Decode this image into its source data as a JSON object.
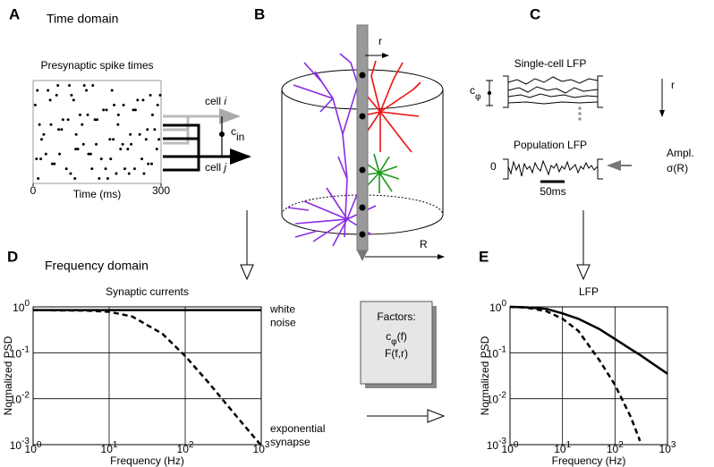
{
  "panel_labels": [
    "A",
    "B",
    "C",
    "D",
    "E"
  ],
  "time_domain": "Time domain",
  "frequency_domain": "Frequency domain",
  "panel_a": {
    "cell_i": {
      "text": "cell",
      "index": "i"
    },
    "cell_j": {
      "text": "cell",
      "index": "j"
    },
    "c_in": {
      "symbol": "c",
      "subscript": "in"
    }
  },
  "panel_b": {
    "r": "r",
    "R": "R"
  },
  "panel_c": {
    "single_cell": "Single-cell LFP",
    "population": "Population LFP",
    "c_phi": {
      "symbol": "c",
      "subscript": "φ"
    },
    "r": "r",
    "zero": "0",
    "ampl": "Ampl.",
    "sigma": "σ(R)",
    "scale_bar": "50ms"
  },
  "factors": {
    "title": "Factors:",
    "c_phi": {
      "symbol": "c",
      "subscript": "φ",
      "arg": "(f)"
    },
    "F": "F(f,r)"
  },
  "chart_data": [
    {
      "type": "scatter",
      "title": "Presynaptic spike times",
      "xlabel": "Time (ms)",
      "xlim": [
        0,
        300
      ],
      "xticks": [
        0,
        300
      ],
      "ylim": [
        -1,
        20
      ],
      "color": "#000000",
      "x": [
        12,
        45,
        88,
        130,
        170,
        210,
        255,
        290,
        20,
        67,
        101,
        150,
        199,
        240,
        280,
        5,
        55,
        95,
        140,
        185,
        225,
        270,
        30,
        78,
        118,
        160,
        205,
        250,
        295,
        15,
        60,
        110,
        145,
        190,
        235,
        275,
        40,
        85,
        125,
        175,
        215,
        260,
        8,
        50,
        100,
        135,
        180,
        230,
        285,
        25,
        70,
        115,
        165,
        200,
        245,
        292,
        35,
        90,
        120,
        155,
        195,
        238,
        278,
        18,
        62,
        105,
        148,
        188,
        228,
        268,
        42,
        82,
        128,
        172,
        212,
        258,
        298,
        10,
        58,
        98,
        138,
        182,
        222,
        265
      ],
      "values": [
        0,
        3,
        1,
        5,
        2,
        7,
        4,
        6,
        8,
        10,
        9,
        12,
        11,
        14,
        13,
        15,
        17,
        16,
        19,
        18,
        1,
        3,
        5,
        2,
        7,
        4,
        6,
        9,
        8,
        11,
        10,
        13,
        12,
        15,
        14,
        17,
        16,
        19,
        18,
        0,
        2,
        1,
        4,
        3,
        6,
        5,
        8,
        7,
        10,
        9,
        12,
        11,
        14,
        13,
        16,
        15,
        18,
        17,
        19,
        0,
        1,
        2,
        3,
        4,
        5,
        6,
        7,
        8,
        9,
        10,
        11,
        12,
        13,
        14,
        15,
        16,
        17,
        18,
        19,
        0,
        2,
        4,
        6,
        8
      ]
    },
    {
      "type": "line",
      "title": "Synaptic currents",
      "xlabel": "Frequency (Hz)",
      "ylabel": "Normalized PSD",
      "xscale": "log",
      "yscale": "log",
      "grid": true,
      "xlim": [
        1,
        1000
      ],
      "ylim": [
        0.001,
        1
      ],
      "xticks": [
        {
          "value": 1,
          "label": "10^0"
        },
        {
          "value": 10,
          "label": "10^1"
        },
        {
          "value": 100,
          "label": "10^2"
        },
        {
          "value": 1000,
          "label": "10^3"
        }
      ],
      "yticks": [
        {
          "value": 0.001,
          "label": "10^-3"
        },
        {
          "value": 0.01,
          "label": "10^-2"
        },
        {
          "value": 0.1,
          "label": "10^-1"
        },
        {
          "value": 1,
          "label": "10^0"
        }
      ],
      "x": [
        1,
        2,
        5,
        10,
        20,
        50,
        100,
        200,
        500,
        1000
      ],
      "series": [
        {
          "name": "white noise",
          "color": "#000000",
          "linestyle": "solid",
          "values": [
            0.85,
            0.85,
            0.85,
            0.85,
            0.85,
            0.85,
            0.85,
            0.85,
            0.85,
            0.85
          ]
        },
        {
          "name": "exponential synapse",
          "color": "#000000",
          "linestyle": "dashed",
          "values": [
            0.85,
            0.84,
            0.83,
            0.78,
            0.62,
            0.26,
            0.085,
            0.023,
            0.0037,
            0.00095
          ]
        }
      ]
    },
    {
      "type": "line",
      "title": "LFP",
      "xlabel": "Frequency (Hz)",
      "ylabel": "Normalized PSD",
      "xscale": "log",
      "yscale": "log",
      "grid": true,
      "xlim": [
        1,
        1000
      ],
      "ylim": [
        0.001,
        1
      ],
      "xticks": [
        {
          "value": 1,
          "label": "10^0"
        },
        {
          "value": 10,
          "label": "10^1"
        },
        {
          "value": 100,
          "label": "10^2"
        },
        {
          "value": 1000,
          "label": "10^3"
        }
      ],
      "yticks": [
        {
          "value": 0.001,
          "label": "10^-3"
        },
        {
          "value": 0.01,
          "label": "10^-2"
        },
        {
          "value": 0.1,
          "label": "10^-1"
        },
        {
          "value": 1,
          "label": "10^0"
        }
      ],
      "x": [
        1,
        2,
        5,
        10,
        20,
        50,
        100,
        200,
        300,
        500,
        1000
      ],
      "series": [
        {
          "color": "#000000",
          "linestyle": "solid",
          "values": [
            1,
            0.98,
            0.9,
            0.72,
            0.55,
            0.33,
            0.2,
            0.12,
            0.09,
            0.06,
            0.035
          ]
        },
        {
          "color": "#000000",
          "linestyle": "dashed",
          "values": [
            1,
            0.97,
            0.8,
            0.55,
            0.3,
            0.07,
            0.02,
            0.004,
            0.0012,
            null,
            null
          ]
        }
      ]
    }
  ]
}
